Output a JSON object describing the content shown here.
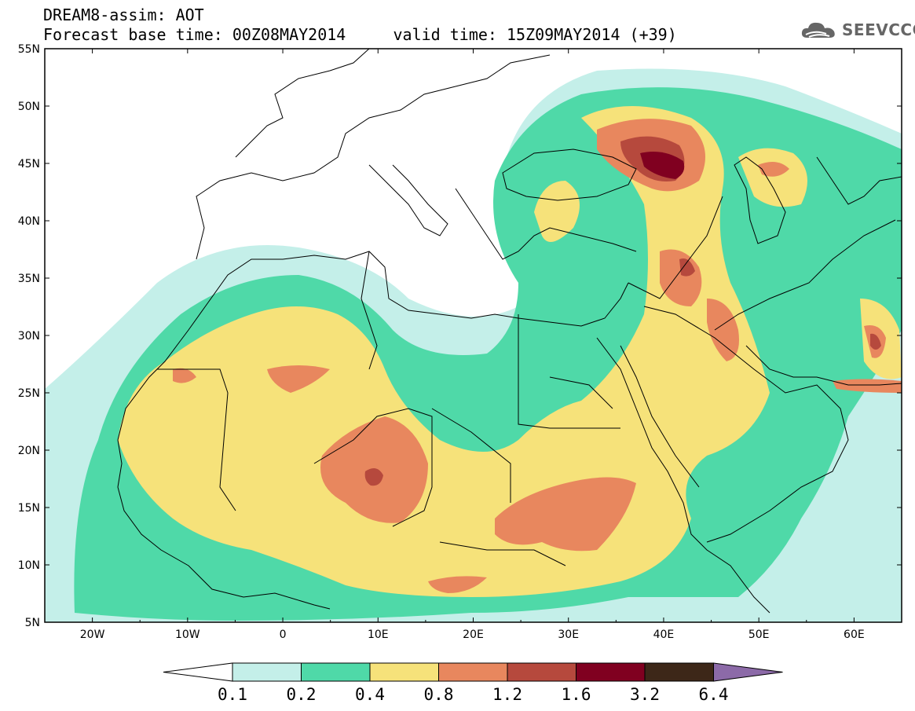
{
  "header": {
    "title_line1": "DREAM8-assim: AOT",
    "title_line2": "Forecast base time: 00Z08MAY2014     valid time: 15Z09MAY2014 (+39)"
  },
  "logo": {
    "text": "SEEVCCC",
    "icon": "cloud-logo-icon"
  },
  "map": {
    "region": "North Africa, Europe, Middle East",
    "lon_range": [
      -25,
      65
    ],
    "lat_range": [
      5,
      55
    ],
    "lat_ticks": [
      "55N",
      "50N",
      "45N",
      "40N",
      "35N",
      "30N",
      "25N",
      "20N",
      "15N",
      "10N",
      "5N"
    ],
    "lon_ticks": [
      "20W",
      "10W",
      "0",
      "10E",
      "20E",
      "30E",
      "40E",
      "50E",
      "60E"
    ]
  },
  "colorbar": {
    "labels": [
      "0.1",
      "0.2",
      "0.4",
      "0.8",
      "1.2",
      "1.6",
      "3.2",
      "6.4"
    ],
    "colors": [
      "#ffffff",
      "#c4efe9",
      "#4fd9a8",
      "#f6e27a",
      "#e8875e",
      "#b6493d",
      "#800020",
      "#3d2718",
      "#8c6aa8"
    ]
  }
}
